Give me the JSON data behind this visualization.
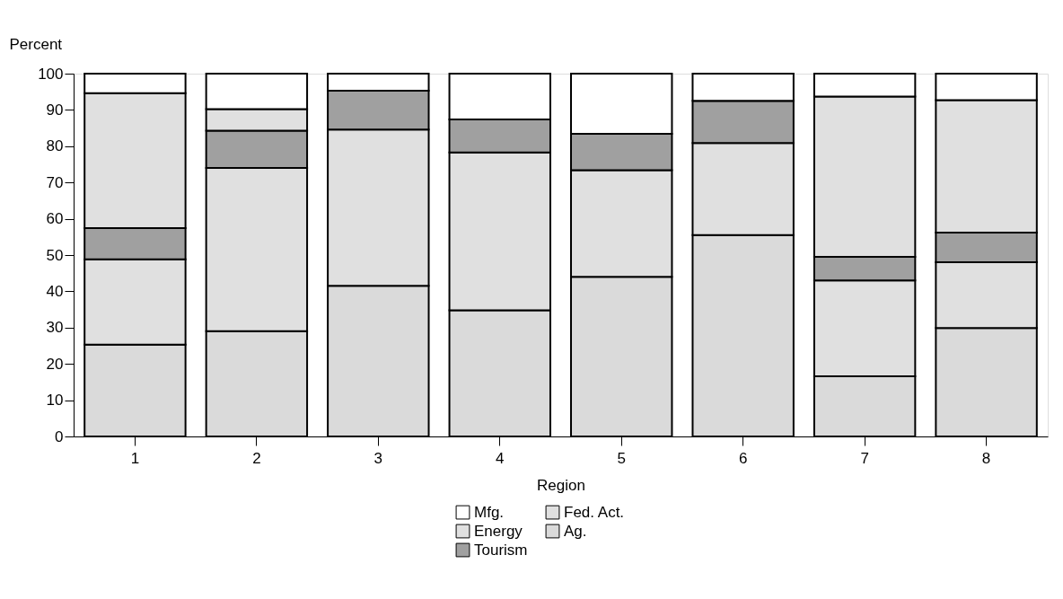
{
  "chart_data": {
    "type": "bar",
    "stacked": true,
    "xlabel": "Region",
    "ylabel": "Percent",
    "categories": [
      "1",
      "2",
      "3",
      "4",
      "5",
      "6",
      "7",
      "8"
    ],
    "series": [
      {
        "name": "Ag.",
        "color": "#dadada",
        "values": [
          25.3,
          29.0,
          41.5,
          34.8,
          44.0,
          55.5,
          16.6,
          29.9
        ]
      },
      {
        "name": "Fed. Act.",
        "color": "#e0e0e0",
        "values": [
          23.5,
          45.0,
          43.1,
          43.5,
          29.4,
          25.4,
          26.4,
          18.1
        ]
      },
      {
        "name": "Tourism",
        "color": "#a0a0a0",
        "values": [
          8.6,
          10.3,
          10.7,
          9.1,
          10.0,
          11.6,
          6.5,
          8.2
        ]
      },
      {
        "name": "Energy",
        "color": "#e0e0e0",
        "values": [
          37.2,
          5.9,
          0,
          0,
          0,
          0,
          44.2,
          36.5
        ]
      },
      {
        "name": "Mfg.",
        "color": "#ffffff",
        "values": [
          5.4,
          9.8,
          4.7,
          12.6,
          16.6,
          7.5,
          6.3,
          7.3
        ]
      }
    ],
    "ylim": [
      0,
      100
    ],
    "yticks": [
      0,
      10,
      20,
      30,
      40,
      50,
      60,
      70,
      80,
      90,
      100
    ],
    "grid": false,
    "legend": "bottom"
  }
}
